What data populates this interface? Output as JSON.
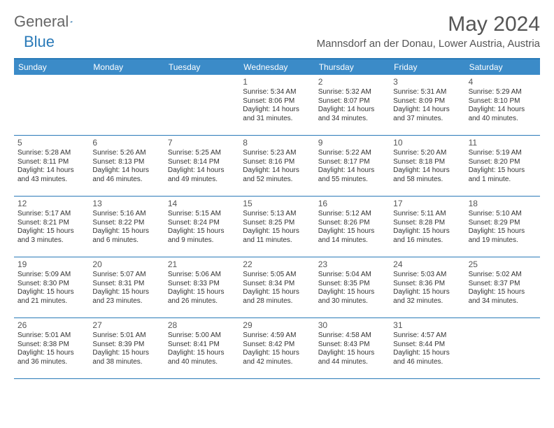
{
  "logo": {
    "text1": "General",
    "text2": "Blue"
  },
  "title": "May 2024",
  "location": "Mannsdorf an der Donau, Lower Austria, Austria",
  "colors": {
    "header_bg": "#3b8bc8",
    "border": "#2a7ab8",
    "text": "#333333",
    "title_text": "#555555"
  },
  "day_headers": [
    "Sunday",
    "Monday",
    "Tuesday",
    "Wednesday",
    "Thursday",
    "Friday",
    "Saturday"
  ],
  "weeks": [
    [
      {
        "day": "",
        "sunrise": "",
        "sunset": "",
        "daylight1": "",
        "daylight2": ""
      },
      {
        "day": "",
        "sunrise": "",
        "sunset": "",
        "daylight1": "",
        "daylight2": ""
      },
      {
        "day": "",
        "sunrise": "",
        "sunset": "",
        "daylight1": "",
        "daylight2": ""
      },
      {
        "day": "1",
        "sunrise": "Sunrise: 5:34 AM",
        "sunset": "Sunset: 8:06 PM",
        "daylight1": "Daylight: 14 hours",
        "daylight2": "and 31 minutes."
      },
      {
        "day": "2",
        "sunrise": "Sunrise: 5:32 AM",
        "sunset": "Sunset: 8:07 PM",
        "daylight1": "Daylight: 14 hours",
        "daylight2": "and 34 minutes."
      },
      {
        "day": "3",
        "sunrise": "Sunrise: 5:31 AM",
        "sunset": "Sunset: 8:09 PM",
        "daylight1": "Daylight: 14 hours",
        "daylight2": "and 37 minutes."
      },
      {
        "day": "4",
        "sunrise": "Sunrise: 5:29 AM",
        "sunset": "Sunset: 8:10 PM",
        "daylight1": "Daylight: 14 hours",
        "daylight2": "and 40 minutes."
      }
    ],
    [
      {
        "day": "5",
        "sunrise": "Sunrise: 5:28 AM",
        "sunset": "Sunset: 8:11 PM",
        "daylight1": "Daylight: 14 hours",
        "daylight2": "and 43 minutes."
      },
      {
        "day": "6",
        "sunrise": "Sunrise: 5:26 AM",
        "sunset": "Sunset: 8:13 PM",
        "daylight1": "Daylight: 14 hours",
        "daylight2": "and 46 minutes."
      },
      {
        "day": "7",
        "sunrise": "Sunrise: 5:25 AM",
        "sunset": "Sunset: 8:14 PM",
        "daylight1": "Daylight: 14 hours",
        "daylight2": "and 49 minutes."
      },
      {
        "day": "8",
        "sunrise": "Sunrise: 5:23 AM",
        "sunset": "Sunset: 8:16 PM",
        "daylight1": "Daylight: 14 hours",
        "daylight2": "and 52 minutes."
      },
      {
        "day": "9",
        "sunrise": "Sunrise: 5:22 AM",
        "sunset": "Sunset: 8:17 PM",
        "daylight1": "Daylight: 14 hours",
        "daylight2": "and 55 minutes."
      },
      {
        "day": "10",
        "sunrise": "Sunrise: 5:20 AM",
        "sunset": "Sunset: 8:18 PM",
        "daylight1": "Daylight: 14 hours",
        "daylight2": "and 58 minutes."
      },
      {
        "day": "11",
        "sunrise": "Sunrise: 5:19 AM",
        "sunset": "Sunset: 8:20 PM",
        "daylight1": "Daylight: 15 hours",
        "daylight2": "and 1 minute."
      }
    ],
    [
      {
        "day": "12",
        "sunrise": "Sunrise: 5:17 AM",
        "sunset": "Sunset: 8:21 PM",
        "daylight1": "Daylight: 15 hours",
        "daylight2": "and 3 minutes."
      },
      {
        "day": "13",
        "sunrise": "Sunrise: 5:16 AM",
        "sunset": "Sunset: 8:22 PM",
        "daylight1": "Daylight: 15 hours",
        "daylight2": "and 6 minutes."
      },
      {
        "day": "14",
        "sunrise": "Sunrise: 5:15 AM",
        "sunset": "Sunset: 8:24 PM",
        "daylight1": "Daylight: 15 hours",
        "daylight2": "and 9 minutes."
      },
      {
        "day": "15",
        "sunrise": "Sunrise: 5:13 AM",
        "sunset": "Sunset: 8:25 PM",
        "daylight1": "Daylight: 15 hours",
        "daylight2": "and 11 minutes."
      },
      {
        "day": "16",
        "sunrise": "Sunrise: 5:12 AM",
        "sunset": "Sunset: 8:26 PM",
        "daylight1": "Daylight: 15 hours",
        "daylight2": "and 14 minutes."
      },
      {
        "day": "17",
        "sunrise": "Sunrise: 5:11 AM",
        "sunset": "Sunset: 8:28 PM",
        "daylight1": "Daylight: 15 hours",
        "daylight2": "and 16 minutes."
      },
      {
        "day": "18",
        "sunrise": "Sunrise: 5:10 AM",
        "sunset": "Sunset: 8:29 PM",
        "daylight1": "Daylight: 15 hours",
        "daylight2": "and 19 minutes."
      }
    ],
    [
      {
        "day": "19",
        "sunrise": "Sunrise: 5:09 AM",
        "sunset": "Sunset: 8:30 PM",
        "daylight1": "Daylight: 15 hours",
        "daylight2": "and 21 minutes."
      },
      {
        "day": "20",
        "sunrise": "Sunrise: 5:07 AM",
        "sunset": "Sunset: 8:31 PM",
        "daylight1": "Daylight: 15 hours",
        "daylight2": "and 23 minutes."
      },
      {
        "day": "21",
        "sunrise": "Sunrise: 5:06 AM",
        "sunset": "Sunset: 8:33 PM",
        "daylight1": "Daylight: 15 hours",
        "daylight2": "and 26 minutes."
      },
      {
        "day": "22",
        "sunrise": "Sunrise: 5:05 AM",
        "sunset": "Sunset: 8:34 PM",
        "daylight1": "Daylight: 15 hours",
        "daylight2": "and 28 minutes."
      },
      {
        "day": "23",
        "sunrise": "Sunrise: 5:04 AM",
        "sunset": "Sunset: 8:35 PM",
        "daylight1": "Daylight: 15 hours",
        "daylight2": "and 30 minutes."
      },
      {
        "day": "24",
        "sunrise": "Sunrise: 5:03 AM",
        "sunset": "Sunset: 8:36 PM",
        "daylight1": "Daylight: 15 hours",
        "daylight2": "and 32 minutes."
      },
      {
        "day": "25",
        "sunrise": "Sunrise: 5:02 AM",
        "sunset": "Sunset: 8:37 PM",
        "daylight1": "Daylight: 15 hours",
        "daylight2": "and 34 minutes."
      }
    ],
    [
      {
        "day": "26",
        "sunrise": "Sunrise: 5:01 AM",
        "sunset": "Sunset: 8:38 PM",
        "daylight1": "Daylight: 15 hours",
        "daylight2": "and 36 minutes."
      },
      {
        "day": "27",
        "sunrise": "Sunrise: 5:01 AM",
        "sunset": "Sunset: 8:39 PM",
        "daylight1": "Daylight: 15 hours",
        "daylight2": "and 38 minutes."
      },
      {
        "day": "28",
        "sunrise": "Sunrise: 5:00 AM",
        "sunset": "Sunset: 8:41 PM",
        "daylight1": "Daylight: 15 hours",
        "daylight2": "and 40 minutes."
      },
      {
        "day": "29",
        "sunrise": "Sunrise: 4:59 AM",
        "sunset": "Sunset: 8:42 PM",
        "daylight1": "Daylight: 15 hours",
        "daylight2": "and 42 minutes."
      },
      {
        "day": "30",
        "sunrise": "Sunrise: 4:58 AM",
        "sunset": "Sunset: 8:43 PM",
        "daylight1": "Daylight: 15 hours",
        "daylight2": "and 44 minutes."
      },
      {
        "day": "31",
        "sunrise": "Sunrise: 4:57 AM",
        "sunset": "Sunset: 8:44 PM",
        "daylight1": "Daylight: 15 hours",
        "daylight2": "and 46 minutes."
      },
      {
        "day": "",
        "sunrise": "",
        "sunset": "",
        "daylight1": "",
        "daylight2": ""
      }
    ]
  ]
}
